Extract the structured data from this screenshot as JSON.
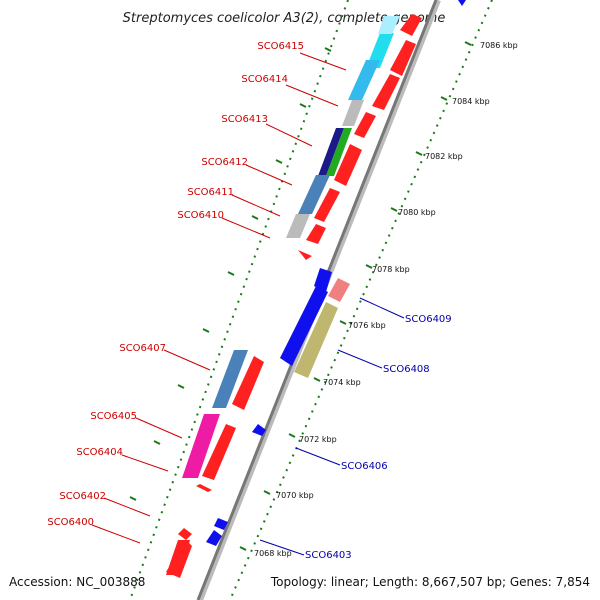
{
  "title": "Streptomyces coelicolor A3(2), complete genome",
  "footer": {
    "accession": "Accession: NC_003888",
    "summary": "Topology: linear; Length: 8,667,507 bp; Genes: 7,854"
  },
  "colors": {
    "red_label": "#cc0000",
    "blue_label": "#0000aa",
    "ruler": "#1a7a1a",
    "backbone": "#888888"
  },
  "ruler_labels": [
    "7068 kbp",
    "7070 kbp",
    "7072 kbp",
    "7074 kbp",
    "7076 kbp",
    "7078 kbp",
    "7080 kbp",
    "7082 kbp",
    "7084 kbp",
    "7086 kbp"
  ],
  "gene_labels_left": [
    "SCO6415",
    "SCO6414",
    "SCO6413",
    "SCO6412",
    "SCO6411",
    "SCO6410",
    "SCO6407",
    "SCO6405",
    "SCO6404",
    "SCO6402",
    "SCO6400"
  ],
  "gene_labels_right": [
    "SCO6409",
    "SCO6408",
    "SCO6406",
    "SCO6403"
  ]
}
